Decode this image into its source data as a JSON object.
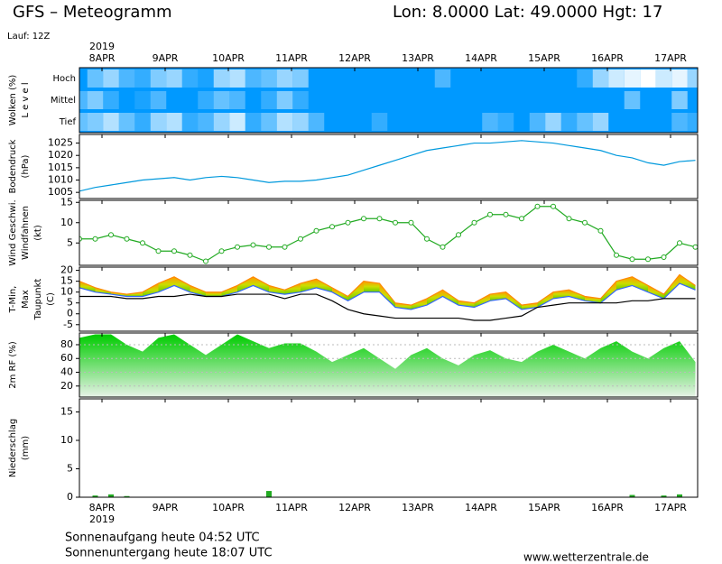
{
  "header": {
    "title": "GFS – Meteogramm",
    "location": "Lon: 8.0000 Lat: 49.0000 Hgt: 17",
    "run": "Lauf: 12Z",
    "year": "2019"
  },
  "footer": {
    "sunrise": "Sonnenaufgang heute 04:52 UTC",
    "sunset": "Sonnenuntergang heute 18:07 UTC",
    "site": "www.wetterzentrale.de"
  },
  "dates": [
    "8APR",
    "9APR",
    "10APR",
    "11APR",
    "12APR",
    "13APR",
    "14APR",
    "15APR",
    "16APR",
    "17APR"
  ],
  "chart_data": [
    {
      "type": "clouds",
      "ylabel": [
        "Wolken (%)",
        "L e v e l"
      ],
      "ylabel_colors": [
        "#0099ff",
        "#000000"
      ],
      "background": "#0099ff",
      "series": [
        {
          "name": "Hoch",
          "color": "#ffffff",
          "values": [
            0,
            40,
            60,
            30,
            20,
            50,
            60,
            20,
            10,
            60,
            70,
            30,
            40,
            60,
            50,
            0,
            0,
            0,
            0,
            0,
            0,
            0,
            0,
            30,
            0,
            0,
            0,
            0,
            0,
            0,
            0,
            0,
            20,
            60,
            80,
            90,
            100,
            80,
            90,
            60
          ]
        },
        {
          "name": "Mittel",
          "color": "#ffffff",
          "values": [
            30,
            50,
            20,
            0,
            10,
            30,
            0,
            0,
            20,
            40,
            30,
            0,
            20,
            50,
            20,
            0,
            0,
            0,
            0,
            0,
            0,
            0,
            0,
            0,
            0,
            0,
            0,
            0,
            0,
            0,
            0,
            0,
            0,
            0,
            0,
            40,
            0,
            0,
            50,
            0
          ]
        },
        {
          "name": "Tief",
          "color": "#ffffff",
          "values": [
            40,
            50,
            70,
            40,
            20,
            60,
            70,
            20,
            30,
            60,
            80,
            20,
            40,
            70,
            60,
            30,
            0,
            0,
            0,
            20,
            0,
            0,
            0,
            0,
            0,
            0,
            30,
            20,
            0,
            30,
            60,
            20,
            40,
            60,
            0,
            0,
            0,
            0,
            30,
            20
          ]
        }
      ]
    },
    {
      "type": "line",
      "ylabel": [
        "Bodendruck",
        "(hPa)"
      ],
      "ylim": [
        1002.5,
        1028.5
      ],
      "yticks": [
        1005,
        1010,
        1015,
        1020,
        1025
      ],
      "series": [
        {
          "name": "Bodendruck",
          "color": "#0099dd",
          "values": [
            1005.5,
            1007,
            1008,
            1009,
            1010,
            1010.5,
            1011,
            1010,
            1011,
            1011.5,
            1011,
            1010,
            1009,
            1009.5,
            1009.5,
            1010,
            1011,
            1012,
            1014,
            1016,
            1018,
            1020,
            1022,
            1023,
            1024,
            1025,
            1025,
            1025.5,
            1026,
            1025.5,
            1025,
            1024,
            1023,
            1022,
            1020,
            1019,
            1017,
            1016,
            1017.5,
            1018
          ]
        }
      ]
    },
    {
      "type": "line",
      "ylabel": [
        "Wind Geschwi.",
        "Windfahnen",
        "(kt)"
      ],
      "ylabel_colors": [
        "#22aa22",
        "#000000",
        "#000000"
      ],
      "ylim": [
        -0.5,
        15.5
      ],
      "yticks": [
        5,
        10,
        15
      ],
      "markers": true,
      "series": [
        {
          "name": "Wind Geschwi.",
          "color": "#22aa22",
          "values": [
            6,
            6,
            7,
            6,
            5,
            3,
            3,
            2,
            0.5,
            3,
            4,
            4.5,
            4,
            4,
            6,
            8,
            9,
            10,
            11,
            11,
            10,
            10,
            6,
            4,
            7,
            10,
            12,
            12,
            11,
            14,
            14,
            11,
            10,
            8,
            2,
            1,
            1,
            1.5,
            5,
            4
          ]
        }
      ]
    },
    {
      "type": "band",
      "ylabel": [
        "T-Min,",
        "Max",
        "Taupunkt",
        "(C)"
      ],
      "ylabel_colors": [
        "#0000ff",
        "#ff0000",
        "#000000",
        "#000000"
      ],
      "ylim": [
        -8,
        21.5
      ],
      "yticks": [
        20,
        15,
        10,
        5,
        0,
        -5
      ],
      "band_colors": [
        "#ff9900",
        "#ccdd00",
        "#66cc00"
      ],
      "series": [
        {
          "name": "Max",
          "color": "#ff8800",
          "values": [
            15,
            12,
            10,
            9,
            10,
            14,
            17,
            13,
            10,
            10,
            13,
            17,
            13,
            11,
            14,
            16,
            12,
            8,
            15,
            14,
            5,
            4,
            7,
            11,
            6,
            5,
            9,
            10,
            4,
            5,
            10,
            11,
            8,
            7,
            15,
            17,
            13,
            9,
            18,
            13
          ]
        },
        {
          "name": "T-Min",
          "color": "#3366ff",
          "values": [
            12,
            10,
            9,
            8,
            8,
            10,
            13,
            10,
            8,
            8,
            10,
            13,
            10,
            9,
            10,
            12,
            10,
            6,
            10,
            10,
            3,
            2,
            4,
            8,
            4,
            3,
            6,
            7,
            2,
            3,
            7,
            8,
            6,
            5,
            11,
            13,
            10,
            7,
            14,
            11
          ]
        },
        {
          "name": "Taupunkt",
          "color": "#000000",
          "values": [
            8,
            8,
            8,
            7,
            7,
            8,
            8,
            9,
            8,
            8,
            9,
            9,
            9,
            7,
            9,
            9,
            6,
            2,
            0,
            -1,
            -2,
            -2,
            -2,
            -2,
            -2,
            -3,
            -3,
            -2,
            -1,
            3,
            4,
            5,
            5,
            5,
            5,
            6,
            6,
            7,
            7,
            7
          ]
        }
      ]
    },
    {
      "type": "area",
      "ylabel": [
        "2m RF (%)"
      ],
      "ylabel_colors": [
        "#22aa22"
      ],
      "ylim": [
        4,
        97
      ],
      "yticks": [
        80,
        60,
        40,
        20
      ],
      "grid": true,
      "colors": [
        "#00cc00",
        "#e8f2e8"
      ],
      "series": [
        {
          "name": "2m RF",
          "color": "#00cc00",
          "values": [
            90,
            95,
            95,
            80,
            70,
            90,
            95,
            80,
            65,
            80,
            95,
            85,
            75,
            82,
            82,
            70,
            55,
            65,
            75,
            60,
            45,
            65,
            75,
            60,
            50,
            65,
            72,
            60,
            55,
            70,
            80,
            70,
            60,
            75,
            85,
            70,
            60,
            75,
            85,
            55
          ]
        }
      ]
    },
    {
      "type": "bar",
      "ylabel": [
        "Niederschlag",
        "(mm)"
      ],
      "ylim": [
        0,
        17.3
      ],
      "yticks": [
        0,
        5,
        10,
        15
      ],
      "series": [
        {
          "name": "Niederschlag",
          "color": "#22aa22",
          "values": [
            0,
            0.3,
            0.5,
            0.2,
            0,
            0,
            0,
            0,
            0,
            0,
            0,
            0,
            1.1,
            0,
            0,
            0,
            0,
            0,
            0,
            0,
            0,
            0,
            0,
            0,
            0,
            0,
            0,
            0,
            0,
            0,
            0,
            0,
            0,
            0,
            0,
            0.4,
            0,
            0.3,
            0.5,
            0
          ]
        }
      ]
    }
  ]
}
